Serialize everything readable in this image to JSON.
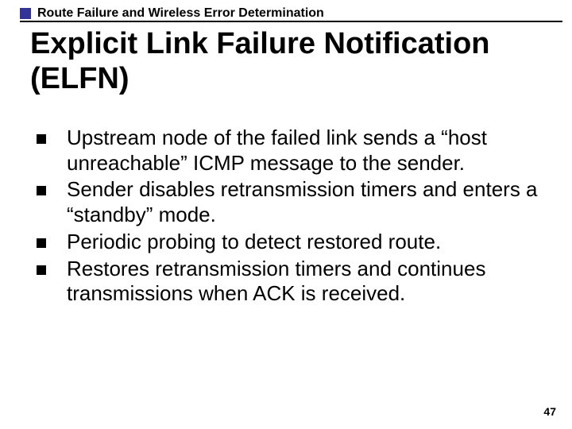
{
  "header": {
    "section_label": "Route Failure and Wireless Error Determination",
    "accent_color": "#333399",
    "line_color": "#000000"
  },
  "title": "Explicit Link Failure Notification (ELFN)",
  "bullets": [
    {
      "text": "Upstream node of the failed link sends a “host unreachable” ICMP message to the sender."
    },
    {
      "text": "Sender disables retransmission timers and enters a “standby” mode."
    },
    {
      "text": "Periodic probing to detect restored route."
    },
    {
      "text": "Restores retransmission timers and continues transmissions when ACK is received."
    }
  ],
  "page_number": "47",
  "style": {
    "background_color": "#ffffff",
    "title_fontsize_pt": 28,
    "body_fontsize_pt": 20,
    "header_fontsize_pt": 12,
    "bullet_marker_color": "#000000",
    "text_color": "#000000",
    "font_family": "Arial"
  }
}
